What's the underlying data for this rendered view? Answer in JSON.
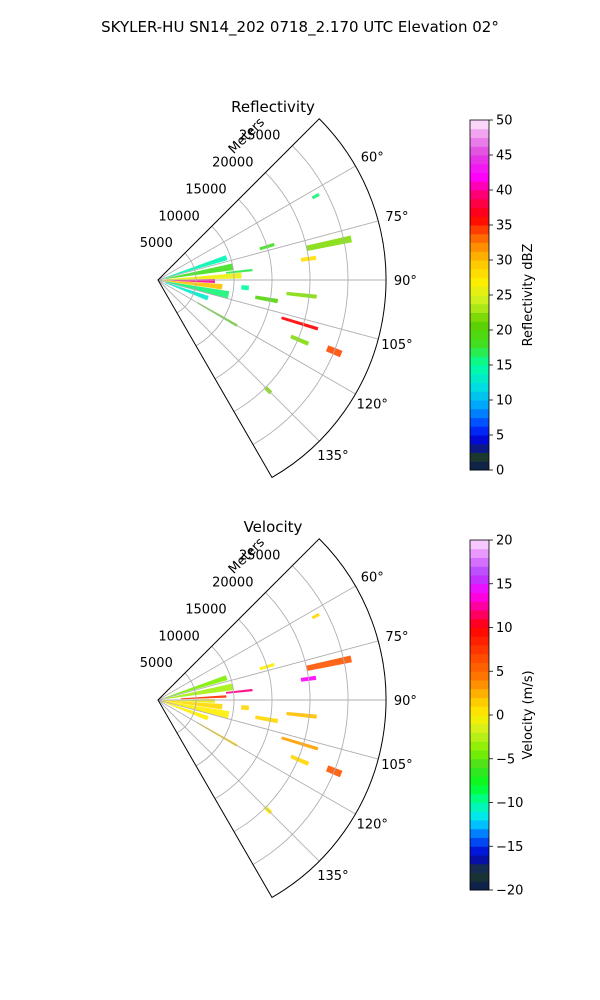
{
  "suptitle": "SKYLER-HU  SN14_202  0718_2.170 UTC Elevation 02°",
  "chart_data": [
    {
      "type": "polar-sector",
      "title": "Reflectivity",
      "field": "reflectivity",
      "radial_label": "Meters",
      "radial_ticks": [
        5000,
        10000,
        15000,
        20000,
        25000
      ],
      "range_max": 30000,
      "azimuth_range": [
        45,
        150
      ],
      "azimuth_ticks": [
        "60°",
        "75°",
        "90°",
        "105°",
        "120°",
        "135°"
      ],
      "azimuth_tick_values": [
        60,
        75,
        90,
        105,
        120,
        135
      ],
      "grid": true,
      "colorbar": {
        "label": "Reflectivity dBZ",
        "range": [
          0,
          50
        ],
        "ticks": [
          "0",
          "5",
          "10",
          "15",
          "20",
          "25",
          "30",
          "35",
          "40",
          "45",
          "50"
        ],
        "tick_values": [
          0,
          5,
          10,
          15,
          20,
          25,
          30,
          35,
          40,
          45,
          50
        ],
        "colormap": [
          [
            0,
            "#0a1a55"
          ],
          [
            2,
            "#1d3a2a"
          ],
          [
            4,
            "#0000cc"
          ],
          [
            6,
            "#0030ff"
          ],
          [
            9,
            "#00a0ff"
          ],
          [
            12,
            "#00e0e0"
          ],
          [
            15,
            "#00ffa0"
          ],
          [
            18,
            "#40e020"
          ],
          [
            21,
            "#60d000"
          ],
          [
            24,
            "#c8f020"
          ],
          [
            27,
            "#ffee00"
          ],
          [
            30,
            "#ffc000"
          ],
          [
            33,
            "#ff7000"
          ],
          [
            36,
            "#ff0000"
          ],
          [
            39,
            "#ff0060"
          ],
          [
            42,
            "#ff00ff"
          ],
          [
            45,
            "#e040e0"
          ],
          [
            48,
            "#f0a0f0"
          ],
          [
            50,
            "#fff0ff"
          ]
        ]
      },
      "echoes": [
        {
          "az": 72,
          "r0": 500,
          "r1": 9500,
          "width": 4,
          "value": 14
        },
        {
          "az": 80,
          "r0": 1000,
          "r1": 10000,
          "width": 5,
          "value": 18
        },
        {
          "az": 87,
          "r0": 500,
          "r1": 11000,
          "width": 4,
          "value": 26
        },
        {
          "az": 91,
          "r0": 500,
          "r1": 7500,
          "width": 4,
          "value": 40
        },
        {
          "az": 96,
          "r0": 500,
          "r1": 8500,
          "width": 5,
          "value": 30
        },
        {
          "az": 102,
          "r0": 1000,
          "r1": 9500,
          "width": 6,
          "value": 16
        },
        {
          "az": 110,
          "r0": 1000,
          "r1": 7000,
          "width": 5,
          "value": 13
        },
        {
          "az": 84,
          "r0": 9000,
          "r1": 12500,
          "width": 1.5,
          "value": 17
        },
        {
          "az": 95,
          "r0": 11000,
          "r1": 12000,
          "width": 3,
          "value": 15
        },
        {
          "az": 100,
          "r0": 13000,
          "r1": 16000,
          "width": 2,
          "value": 20
        },
        {
          "az": 96,
          "r0": 17000,
          "r1": 21000,
          "width": 1.5,
          "value": 22
        },
        {
          "az": 78,
          "r0": 20000,
          "r1": 26000,
          "width": 2,
          "value": 22
        },
        {
          "az": 82,
          "r0": 19000,
          "r1": 21000,
          "width": 1.5,
          "value": 28
        },
        {
          "az": 107,
          "r0": 17000,
          "r1": 22000,
          "width": 1.2,
          "value": 36
        },
        {
          "az": 113,
          "r0": 19000,
          "r1": 21500,
          "width": 1.5,
          "value": 22
        },
        {
          "az": 112,
          "r0": 24000,
          "r1": 26000,
          "width": 2,
          "value": 34
        },
        {
          "az": 73,
          "r0": 14000,
          "r1": 16000,
          "width": 1.5,
          "value": 18
        },
        {
          "az": 120,
          "r0": 6000,
          "r1": 12000,
          "width": 1.5,
          "value": 20
        },
        {
          "az": 135,
          "r0": 20000,
          "r1": 21000,
          "width": 1.5,
          "value": 22
        },
        {
          "az": 62,
          "r0": 23000,
          "r1": 24000,
          "width": 1,
          "value": 16
        }
      ]
    },
    {
      "type": "polar-sector",
      "title": "Velocity",
      "field": "velocity",
      "radial_label": "Meters",
      "radial_ticks": [
        5000,
        10000,
        15000,
        20000,
        25000
      ],
      "range_max": 30000,
      "azimuth_range": [
        45,
        150
      ],
      "azimuth_ticks": [
        "60°",
        "75°",
        "90°",
        "105°",
        "120°",
        "135°"
      ],
      "azimuth_tick_values": [
        60,
        75,
        90,
        105,
        120,
        135
      ],
      "grid": true,
      "colorbar": {
        "label": "Velocity (m/s)",
        "range": [
          -20,
          20
        ],
        "ticks": [
          "−20",
          "−15",
          "−10",
          "−5",
          "0",
          "5",
          "10",
          "15",
          "20"
        ],
        "tick_values": [
          -20,
          -15,
          -10,
          -5,
          0,
          5,
          10,
          15,
          20
        ],
        "colormap": [
          [
            -20,
            "#0a1a55"
          ],
          [
            -18,
            "#1d3a2a"
          ],
          [
            -16,
            "#0000cc"
          ],
          [
            -14,
            "#0060ff"
          ],
          [
            -12,
            "#00e0ff"
          ],
          [
            -10,
            "#00ffa0"
          ],
          [
            -8,
            "#00ff20"
          ],
          [
            -6,
            "#40e020"
          ],
          [
            -4,
            "#80f000"
          ],
          [
            -2,
            "#c8f020"
          ],
          [
            0,
            "#ffee00"
          ],
          [
            2,
            "#ffc000"
          ],
          [
            4,
            "#ff8000"
          ],
          [
            7,
            "#ff4000"
          ],
          [
            10,
            "#ff0000"
          ],
          [
            12,
            "#ff0080"
          ],
          [
            14,
            "#ff00ff"
          ],
          [
            16,
            "#b040ff"
          ],
          [
            18,
            "#e080ff"
          ],
          [
            20,
            "#ffe0ff"
          ]
        ]
      },
      "echoes": [
        {
          "az": 72,
          "r0": 500,
          "r1": 9500,
          "width": 4,
          "value": -4
        },
        {
          "az": 80,
          "r0": 1000,
          "r1": 10000,
          "width": 5,
          "value": -3
        },
        {
          "az": 87,
          "r0": 3000,
          "r1": 9000,
          "width": 2,
          "value": 8
        },
        {
          "az": 91,
          "r0": 500,
          "r1": 7500,
          "width": 4,
          "value": -1
        },
        {
          "az": 96,
          "r0": 500,
          "r1": 8500,
          "width": 5,
          "value": 1
        },
        {
          "az": 102,
          "r0": 500,
          "r1": 9500,
          "width": 6,
          "value": 0
        },
        {
          "az": 110,
          "r0": 500,
          "r1": 7000,
          "width": 5,
          "value": 0
        },
        {
          "az": 84,
          "r0": 9000,
          "r1": 12500,
          "width": 1.5,
          "value": 12
        },
        {
          "az": 95,
          "r0": 11000,
          "r1": 12000,
          "width": 3,
          "value": 1
        },
        {
          "az": 100,
          "r0": 13000,
          "r1": 16000,
          "width": 2,
          "value": 1
        },
        {
          "az": 96,
          "r0": 17000,
          "r1": 21000,
          "width": 1.5,
          "value": 2
        },
        {
          "az": 78,
          "r0": 20000,
          "r1": 26000,
          "width": 2,
          "value": 6
        },
        {
          "az": 82,
          "r0": 19000,
          "r1": 21000,
          "width": 1.5,
          "value": 14
        },
        {
          "az": 107,
          "r0": 17000,
          "r1": 22000,
          "width": 1.2,
          "value": 3
        },
        {
          "az": 113,
          "r0": 19000,
          "r1": 21500,
          "width": 1.5,
          "value": 1
        },
        {
          "az": 112,
          "r0": 24000,
          "r1": 26000,
          "width": 2,
          "value": 6
        },
        {
          "az": 73,
          "r0": 14000,
          "r1": 16000,
          "width": 1.5,
          "value": 0
        },
        {
          "az": 120,
          "r0": 6000,
          "r1": 12000,
          "width": 1.5,
          "value": 1
        },
        {
          "az": 135,
          "r0": 20000,
          "r1": 21000,
          "width": 1.5,
          "value": 0
        },
        {
          "az": 62,
          "r0": 23000,
          "r1": 24000,
          "width": 1,
          "value": 1
        }
      ]
    }
  ]
}
